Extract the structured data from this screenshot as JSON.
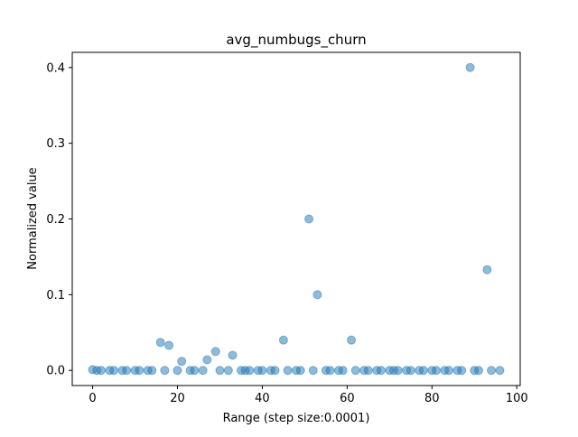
{
  "chart_data": {
    "type": "scatter",
    "title": "avg_numbugs_churn",
    "xlabel": "Range (step size:0.0001)",
    "ylabel": "Normalized value",
    "xlim": [
      -4.8,
      100.8
    ],
    "ylim": [
      -0.02,
      0.42
    ],
    "xticks": [
      0,
      20,
      40,
      60,
      80,
      100
    ],
    "xtick_labels": [
      "0",
      "20",
      "40",
      "60",
      "80",
      "100"
    ],
    "yticks": [
      0.0,
      0.1,
      0.2,
      0.3,
      0.4
    ],
    "ytick_labels": [
      "0.0",
      "0.1",
      "0.2",
      "0.3",
      "0.4"
    ],
    "grid": false,
    "marker_color": "#1f77b4",
    "marker_alpha": 0.5,
    "series": [
      {
        "x": [
          0,
          1,
          2,
          4,
          5,
          7,
          8,
          10,
          11,
          13,
          14,
          16,
          17,
          18,
          20,
          21,
          23,
          24,
          26,
          27,
          29,
          30,
          32,
          33,
          35,
          36,
          37,
          39,
          40,
          42,
          43,
          45,
          46,
          48,
          49,
          51,
          52,
          53,
          55,
          56,
          58,
          59,
          61,
          62,
          64,
          65,
          67,
          68,
          70,
          71,
          72,
          74,
          75,
          77,
          78,
          80,
          81,
          83,
          84,
          86,
          87,
          89,
          90,
          91,
          93,
          94,
          96
        ],
        "y": [
          0.001,
          0,
          0,
          0,
          0,
          0,
          0,
          0,
          0,
          0,
          0,
          0.037,
          0,
          0.033,
          0,
          0.012,
          0,
          0,
          0,
          0.014,
          0.025,
          0,
          0,
          0.02,
          0,
          0,
          0,
          0,
          0,
          0,
          0,
          0.04,
          0,
          0,
          0,
          0.2,
          0,
          0.1,
          0,
          0,
          0,
          0,
          0.04,
          0,
          0,
          0,
          0,
          0,
          0,
          0,
          0,
          0,
          0,
          0,
          0,
          0,
          0,
          0,
          0,
          0,
          0,
          0.4,
          0,
          0,
          0.133,
          0,
          0
        ]
      }
    ]
  }
}
